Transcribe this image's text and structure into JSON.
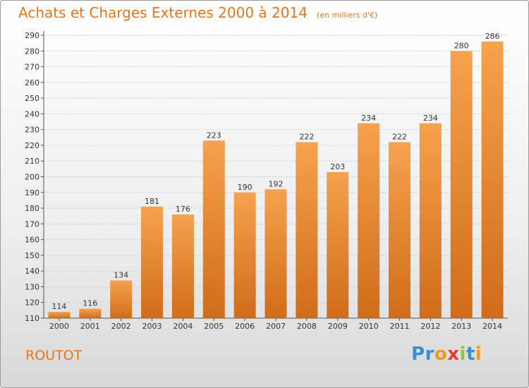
{
  "header": {
    "title": "Achats et Charges Externes 2000 à 2014",
    "subtitle": "(en milliers d'€)"
  },
  "footer": {
    "commune": "ROUTOT",
    "logo_letters": [
      {
        "char": "P",
        "color": "#3a8ed6"
      },
      {
        "char": "r",
        "color": "#3a8ed6"
      },
      {
        "char": "o",
        "color": "#f29a1e"
      },
      {
        "char": "x",
        "color": "#e03b2f"
      },
      {
        "char": "i",
        "color": "#8cc63e"
      },
      {
        "char": "t",
        "color": "#3a8ed6"
      },
      {
        "char": "i",
        "color": "#f29a1e"
      }
    ]
  },
  "colors": {
    "bar_top": "#f6a24e",
    "bar_bottom": "#d06c1a",
    "accent": "#e8741c"
  },
  "chart_data": {
    "type": "bar",
    "title": "Achats et Charges Externes 2000 à 2014",
    "subtitle": "(en milliers d'€)",
    "categories": [
      "2000",
      "2001",
      "2002",
      "2003",
      "2004",
      "2005",
      "2006",
      "2007",
      "2008",
      "2009",
      "2010",
      "2011",
      "2012",
      "2013",
      "2014"
    ],
    "values": [
      114,
      116,
      134,
      181,
      176,
      223,
      190,
      192,
      222,
      203,
      234,
      222,
      234,
      280,
      286
    ],
    "ylim": [
      110,
      290
    ],
    "yticks": [
      110,
      120,
      130,
      140,
      150,
      160,
      170,
      180,
      190,
      200,
      210,
      220,
      230,
      240,
      250,
      260,
      270,
      280,
      290
    ],
    "grid": true,
    "xlabel": "",
    "ylabel": ""
  }
}
